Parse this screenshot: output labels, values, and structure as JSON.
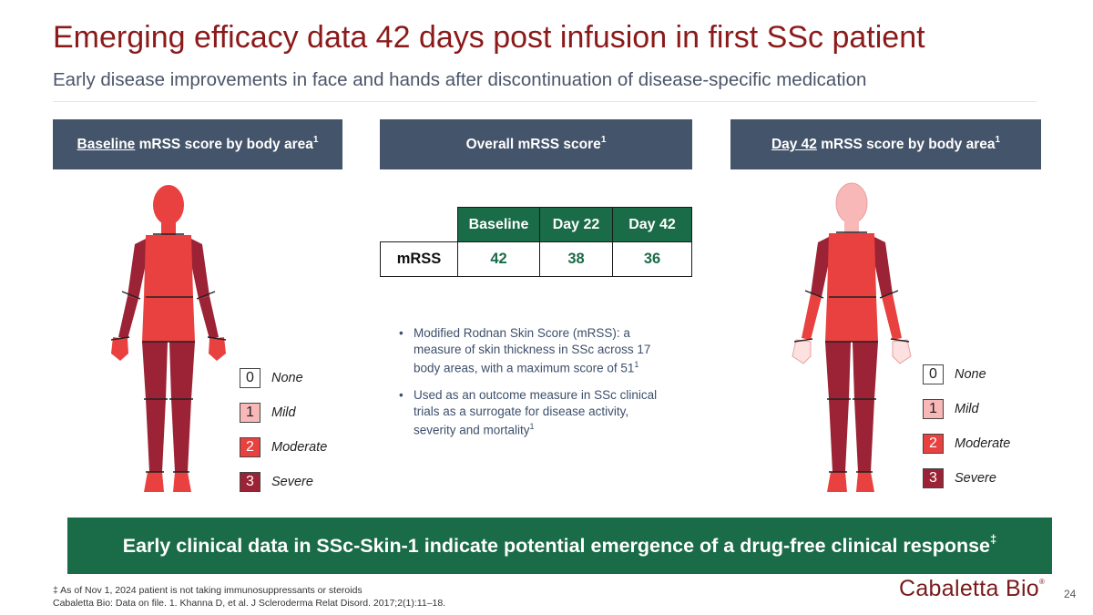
{
  "title": "Emerging efficacy data 42 days post infusion in first SSc patient",
  "subtitle": "Early disease improvements in face and hands after discontinuation of disease-specific medication",
  "headers": {
    "left": {
      "underlined": "Baseline",
      "rest": " mRSS score by body area",
      "sup": "1"
    },
    "middle": {
      "text": "Overall mRSS score",
      "sup": "1"
    },
    "right": {
      "underlined": "Day 42",
      "rest": " mRSS score by body area",
      "sup": "1"
    }
  },
  "table": {
    "columns": [
      "Baseline",
      "Day 22",
      "Day 42"
    ],
    "row_label": "mRSS",
    "values": [
      "42",
      "38",
      "36"
    ]
  },
  "bullets": [
    {
      "text": "Modified Rodnan Skin Score (mRSS): a measure of skin thickness in SSc across 17 body areas, with a maximum score of 51",
      "sup": "1"
    },
    {
      "text": "Used as an outcome measure in SSc clinical trials as a surrogate for disease activity, severity and mortality",
      "sup": "1"
    }
  ],
  "legend": [
    {
      "score": "0",
      "label": "None",
      "color": "#ffffff",
      "text_color": "#222222"
    },
    {
      "score": "1",
      "label": "Mild",
      "color": "#f8b8b8",
      "text_color": "#222222"
    },
    {
      "score": "2",
      "label": "Moderate",
      "color": "#e8413f",
      "text_color": "#ffffff"
    },
    {
      "score": "3",
      "label": "Severe",
      "color": "#9b2335",
      "text_color": "#ffffff"
    }
  ],
  "banner": {
    "text": "Early clinical data in SSc-Skin-1 indicate potential emergence of a drug-free clinical response",
    "sup": "‡"
  },
  "footnotes": [
    "‡ As of Nov 1, 2024 patient is not taking immunosuppressants or steroids",
    "Cabaletta Bio: Data on file. 1. Khanna D, et al. J Scleroderma Relat Disord. 2017;2(1):11–18."
  ],
  "logo": {
    "text": "Cabaletta Bio",
    "mark": "®"
  },
  "page_number": "24",
  "colors": {
    "title": "#8b1a1a",
    "header_bg": "#44546a",
    "table_green": "#1a6b47",
    "none": "#ffffff",
    "mild": "#f8b8b8",
    "moderate": "#e8413f",
    "severe": "#9b2335"
  }
}
